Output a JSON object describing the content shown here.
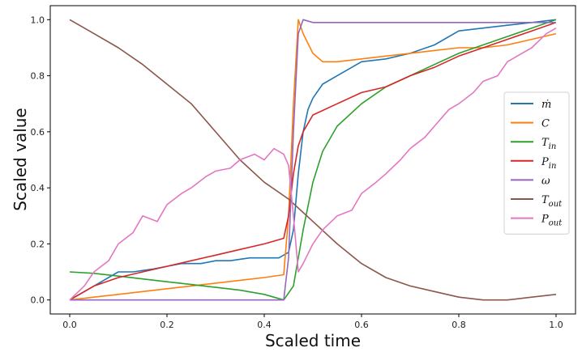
{
  "chart_data": {
    "type": "line",
    "xlabel": "Scaled time",
    "ylabel": "Scaled value",
    "xlim": [
      -0.04,
      1.04
    ],
    "ylim": [
      -0.05,
      1.05
    ],
    "xticks": [
      "0.0",
      "0.2",
      "0.4",
      "0.6",
      "0.8",
      "1.0"
    ],
    "yticks": [
      "0.0",
      "0.2",
      "0.4",
      "0.6",
      "0.8",
      "1.0"
    ],
    "grid": false,
    "legend_position": "center-right",
    "series": [
      {
        "name": "ṁ",
        "sub": "",
        "color": "#1f77b4",
        "x": [
          0.0,
          0.03,
          0.05,
          0.07,
          0.1,
          0.13,
          0.17,
          0.2,
          0.23,
          0.27,
          0.3,
          0.33,
          0.37,
          0.4,
          0.43,
          0.45,
          0.46,
          0.47,
          0.48,
          0.49,
          0.5,
          0.52,
          0.55,
          0.6,
          0.65,
          0.7,
          0.75,
          0.8,
          0.85,
          0.9,
          0.95,
          1.0
        ],
        "y": [
          0.0,
          0.03,
          0.05,
          0.07,
          0.1,
          0.1,
          0.11,
          0.12,
          0.13,
          0.13,
          0.14,
          0.14,
          0.15,
          0.15,
          0.15,
          0.17,
          0.25,
          0.45,
          0.6,
          0.68,
          0.72,
          0.77,
          0.8,
          0.85,
          0.86,
          0.88,
          0.91,
          0.96,
          0.97,
          0.98,
          0.99,
          1.0
        ]
      },
      {
        "name": "C",
        "sub": "",
        "color": "#ff7f0e",
        "x": [
          0.0,
          0.05,
          0.1,
          0.15,
          0.2,
          0.25,
          0.3,
          0.35,
          0.4,
          0.44,
          0.45,
          0.46,
          0.47,
          0.48,
          0.5,
          0.52,
          0.55,
          0.6,
          0.65,
          0.7,
          0.75,
          0.8,
          0.85,
          0.9,
          0.95,
          1.0
        ],
        "y": [
          0.0,
          0.01,
          0.02,
          0.03,
          0.04,
          0.05,
          0.06,
          0.07,
          0.08,
          0.09,
          0.3,
          0.7,
          1.0,
          0.95,
          0.88,
          0.85,
          0.85,
          0.86,
          0.87,
          0.88,
          0.89,
          0.9,
          0.9,
          0.91,
          0.93,
          0.95
        ]
      },
      {
        "name": "T",
        "sub": "in",
        "color": "#2ca02c",
        "x": [
          0.0,
          0.05,
          0.1,
          0.15,
          0.2,
          0.25,
          0.3,
          0.35,
          0.4,
          0.44,
          0.46,
          0.48,
          0.5,
          0.52,
          0.55,
          0.6,
          0.65,
          0.7,
          0.75,
          0.8,
          0.85,
          0.9,
          0.95,
          1.0
        ],
        "y": [
          0.1,
          0.095,
          0.085,
          0.075,
          0.065,
          0.055,
          0.045,
          0.035,
          0.02,
          0.0,
          0.05,
          0.25,
          0.42,
          0.53,
          0.62,
          0.7,
          0.76,
          0.8,
          0.84,
          0.88,
          0.91,
          0.94,
          0.97,
          1.0
        ]
      },
      {
        "name": "P",
        "sub": "in",
        "color": "#d62728",
        "x": [
          0.0,
          0.05,
          0.1,
          0.15,
          0.2,
          0.25,
          0.3,
          0.35,
          0.4,
          0.44,
          0.45,
          0.46,
          0.47,
          0.48,
          0.5,
          0.55,
          0.6,
          0.65,
          0.7,
          0.75,
          0.8,
          0.85,
          0.9,
          0.95,
          1.0
        ],
        "y": [
          0.0,
          0.05,
          0.08,
          0.1,
          0.12,
          0.14,
          0.16,
          0.18,
          0.2,
          0.22,
          0.3,
          0.45,
          0.55,
          0.6,
          0.66,
          0.7,
          0.74,
          0.76,
          0.8,
          0.83,
          0.87,
          0.9,
          0.93,
          0.96,
          0.99
        ]
      },
      {
        "name": "ω",
        "sub": "",
        "color": "#9467bd",
        "x": [
          0.0,
          0.1,
          0.2,
          0.3,
          0.4,
          0.44,
          0.45,
          0.46,
          0.47,
          0.48,
          0.5,
          0.6,
          0.7,
          0.8,
          0.9,
          1.0
        ],
        "y": [
          0.0,
          0.0,
          0.0,
          0.0,
          0.0,
          0.0,
          0.15,
          0.6,
          0.95,
          1.0,
          0.99,
          0.99,
          0.99,
          0.99,
          0.99,
          0.99
        ]
      },
      {
        "name": "T",
        "sub": "out",
        "color": "#8c564b",
        "x": [
          0.0,
          0.05,
          0.1,
          0.15,
          0.2,
          0.25,
          0.3,
          0.35,
          0.4,
          0.45,
          0.5,
          0.55,
          0.6,
          0.65,
          0.7,
          0.75,
          0.8,
          0.85,
          0.9,
          0.95,
          1.0
        ],
        "y": [
          1.0,
          0.95,
          0.9,
          0.84,
          0.77,
          0.7,
          0.6,
          0.5,
          0.42,
          0.36,
          0.28,
          0.2,
          0.13,
          0.08,
          0.05,
          0.03,
          0.01,
          0.0,
          0.0,
          0.01,
          0.02
        ]
      },
      {
        "name": "P",
        "sub": "out",
        "color": "#e377c2",
        "x": [
          0.0,
          0.03,
          0.05,
          0.08,
          0.1,
          0.13,
          0.15,
          0.18,
          0.2,
          0.23,
          0.25,
          0.28,
          0.3,
          0.33,
          0.35,
          0.38,
          0.4,
          0.42,
          0.44,
          0.45,
          0.46,
          0.47,
          0.48,
          0.5,
          0.52,
          0.55,
          0.58,
          0.6,
          0.63,
          0.65,
          0.68,
          0.7,
          0.73,
          0.75,
          0.78,
          0.8,
          0.83,
          0.85,
          0.88,
          0.9,
          0.93,
          0.95,
          0.98,
          1.0
        ],
        "y": [
          0.0,
          0.05,
          0.1,
          0.14,
          0.2,
          0.24,
          0.3,
          0.28,
          0.34,
          0.38,
          0.4,
          0.44,
          0.46,
          0.47,
          0.5,
          0.52,
          0.5,
          0.54,
          0.52,
          0.48,
          0.3,
          0.1,
          0.13,
          0.2,
          0.25,
          0.3,
          0.32,
          0.38,
          0.42,
          0.45,
          0.5,
          0.54,
          0.58,
          0.62,
          0.68,
          0.7,
          0.74,
          0.78,
          0.8,
          0.85,
          0.88,
          0.9,
          0.95,
          0.97
        ]
      }
    ]
  }
}
